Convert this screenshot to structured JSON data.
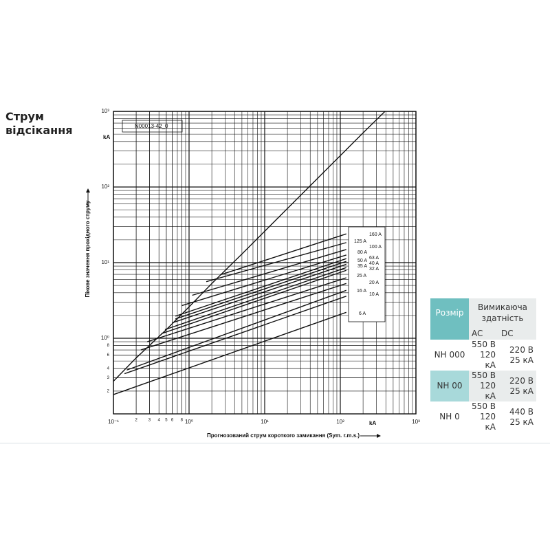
{
  "heading": "Струм відсікання",
  "chart_data": {
    "type": "line",
    "log_x": true,
    "log_y": true,
    "grid": true,
    "minor_grid": true,
    "code": "N00013-42_0",
    "xlabel": "Прогнозований струм короткого замикання (Sym. r.m.s.)",
    "ylabel": "Пікове значення прохідного струму",
    "xunit": "kA",
    "yunit": "kA",
    "xlim": [
      0.1,
      1000
    ],
    "ylim": [
      0.1,
      1000
    ],
    "xticks": [
      {
        "value": 0.1,
        "label": "10⁻¹"
      },
      {
        "value": 0.2,
        "label": "2"
      },
      {
        "value": 0.3,
        "label": "3"
      },
      {
        "value": 0.4,
        "label": "4"
      },
      {
        "value": 0.5,
        "label": "5"
      },
      {
        "value": 0.6,
        "label": "6"
      },
      {
        "value": 0.8,
        "label": "8"
      },
      {
        "value": 1,
        "label": "10⁰"
      },
      {
        "value": 10,
        "label": "10¹"
      },
      {
        "value": 100,
        "label": "10²"
      },
      {
        "value": 1000,
        "label": "10³"
      }
    ],
    "yticks": [
      {
        "value": 0.2,
        "label": "2"
      },
      {
        "value": 0.3,
        "label": "3"
      },
      {
        "value": 0.4,
        "label": "4"
      },
      {
        "value": 0.6,
        "label": "6"
      },
      {
        "value": 0.8,
        "label": "8"
      },
      {
        "value": 1,
        "label": "10⁰"
      },
      {
        "value": 10,
        "label": "10¹"
      },
      {
        "value": 100,
        "label": "10²"
      },
      {
        "value": 1000,
        "label": "10³"
      }
    ],
    "series": [
      {
        "color": "#111111",
        "x": [
          0.1,
          0.2,
          0.5,
          1,
          2,
          5,
          10,
          20,
          50,
          100,
          200,
          390
        ],
        "values": [
          0.27,
          0.55,
          1.3,
          2.6,
          5.3,
          13,
          26,
          52,
          130,
          260,
          520,
          1000
        ]
      },
      {
        "name": "160 A",
        "color": "#111111",
        "x": [
          2.6,
          120
        ],
        "values": [
          6.9,
          24
        ]
      },
      {
        "name": "125 A",
        "color": "#111111",
        "x": [
          1.69,
          120
        ],
        "values": [
          5.6,
          18.4
        ]
      },
      {
        "name": "100 A",
        "color": "#111111",
        "x": [
          1.1,
          120
        ],
        "values": [
          3.7,
          14.9
        ]
      },
      {
        "name": "80 A",
        "color": "#111111",
        "x": [
          0.8,
          120
        ],
        "values": [
          2.7,
          12.6
        ]
      },
      {
        "name": "63 A",
        "color": "#111111",
        "x": [
          0.66,
          120
        ],
        "values": [
          1.96,
          11.3
        ]
      },
      {
        "name": "50 A",
        "color": "#111111",
        "x": [
          0.66,
          120
        ],
        "values": [
          1.8,
          10.4
        ]
      },
      {
        "name": "40 A",
        "color": "#111111",
        "x": [
          0.6,
          120
        ],
        "values": [
          1.6,
          9.5
        ]
      },
      {
        "name": "35 A",
        "color": "#111111",
        "x": [
          0.48,
          120
        ],
        "values": [
          1.3,
          8.6
        ]
      },
      {
        "name": "32 A",
        "color": "#111111",
        "x": [
          0.43,
          120
        ],
        "values": [
          1.15,
          7.9
        ]
      },
      {
        "name": "25 A",
        "color": "#111111",
        "x": [
          0.28,
          120
        ],
        "values": [
          0.9,
          6.3
        ]
      },
      {
        "name": "20 A",
        "color": "#111111",
        "x": [
          0.23,
          120
        ],
        "values": [
          0.7,
          5.3
        ]
      },
      {
        "name": "16 A",
        "color": "#111111",
        "x": [
          0.15,
          120
        ],
        "values": [
          0.38,
          4.3
        ]
      },
      {
        "name": "10 A",
        "color": "#111111",
        "x": [
          0.14,
          120
        ],
        "values": [
          0.34,
          3.6
        ]
      },
      {
        "name": "6 A",
        "color": "#111111",
        "x": [
          0.1,
          120
        ],
        "values": [
          0.18,
          2.2
        ]
      }
    ]
  },
  "table": {
    "header": [
      "Розмір",
      "Вимикаюча здатність"
    ],
    "subheader": [
      "AC",
      "DC"
    ],
    "rows": [
      {
        "size": "NH 000",
        "ac": [
          "550 В",
          "120 кА"
        ],
        "dc": [
          "220 В",
          "25 кА"
        ]
      },
      {
        "size": "NH 00",
        "ac": [
          "550 В",
          "120 кА"
        ],
        "dc": [
          "220 В",
          "25 кА"
        ]
      },
      {
        "size": "NH 0",
        "ac": [
          "550 В",
          "120 кА"
        ],
        "dc": [
          "440 В",
          "25 кА"
        ]
      }
    ]
  }
}
